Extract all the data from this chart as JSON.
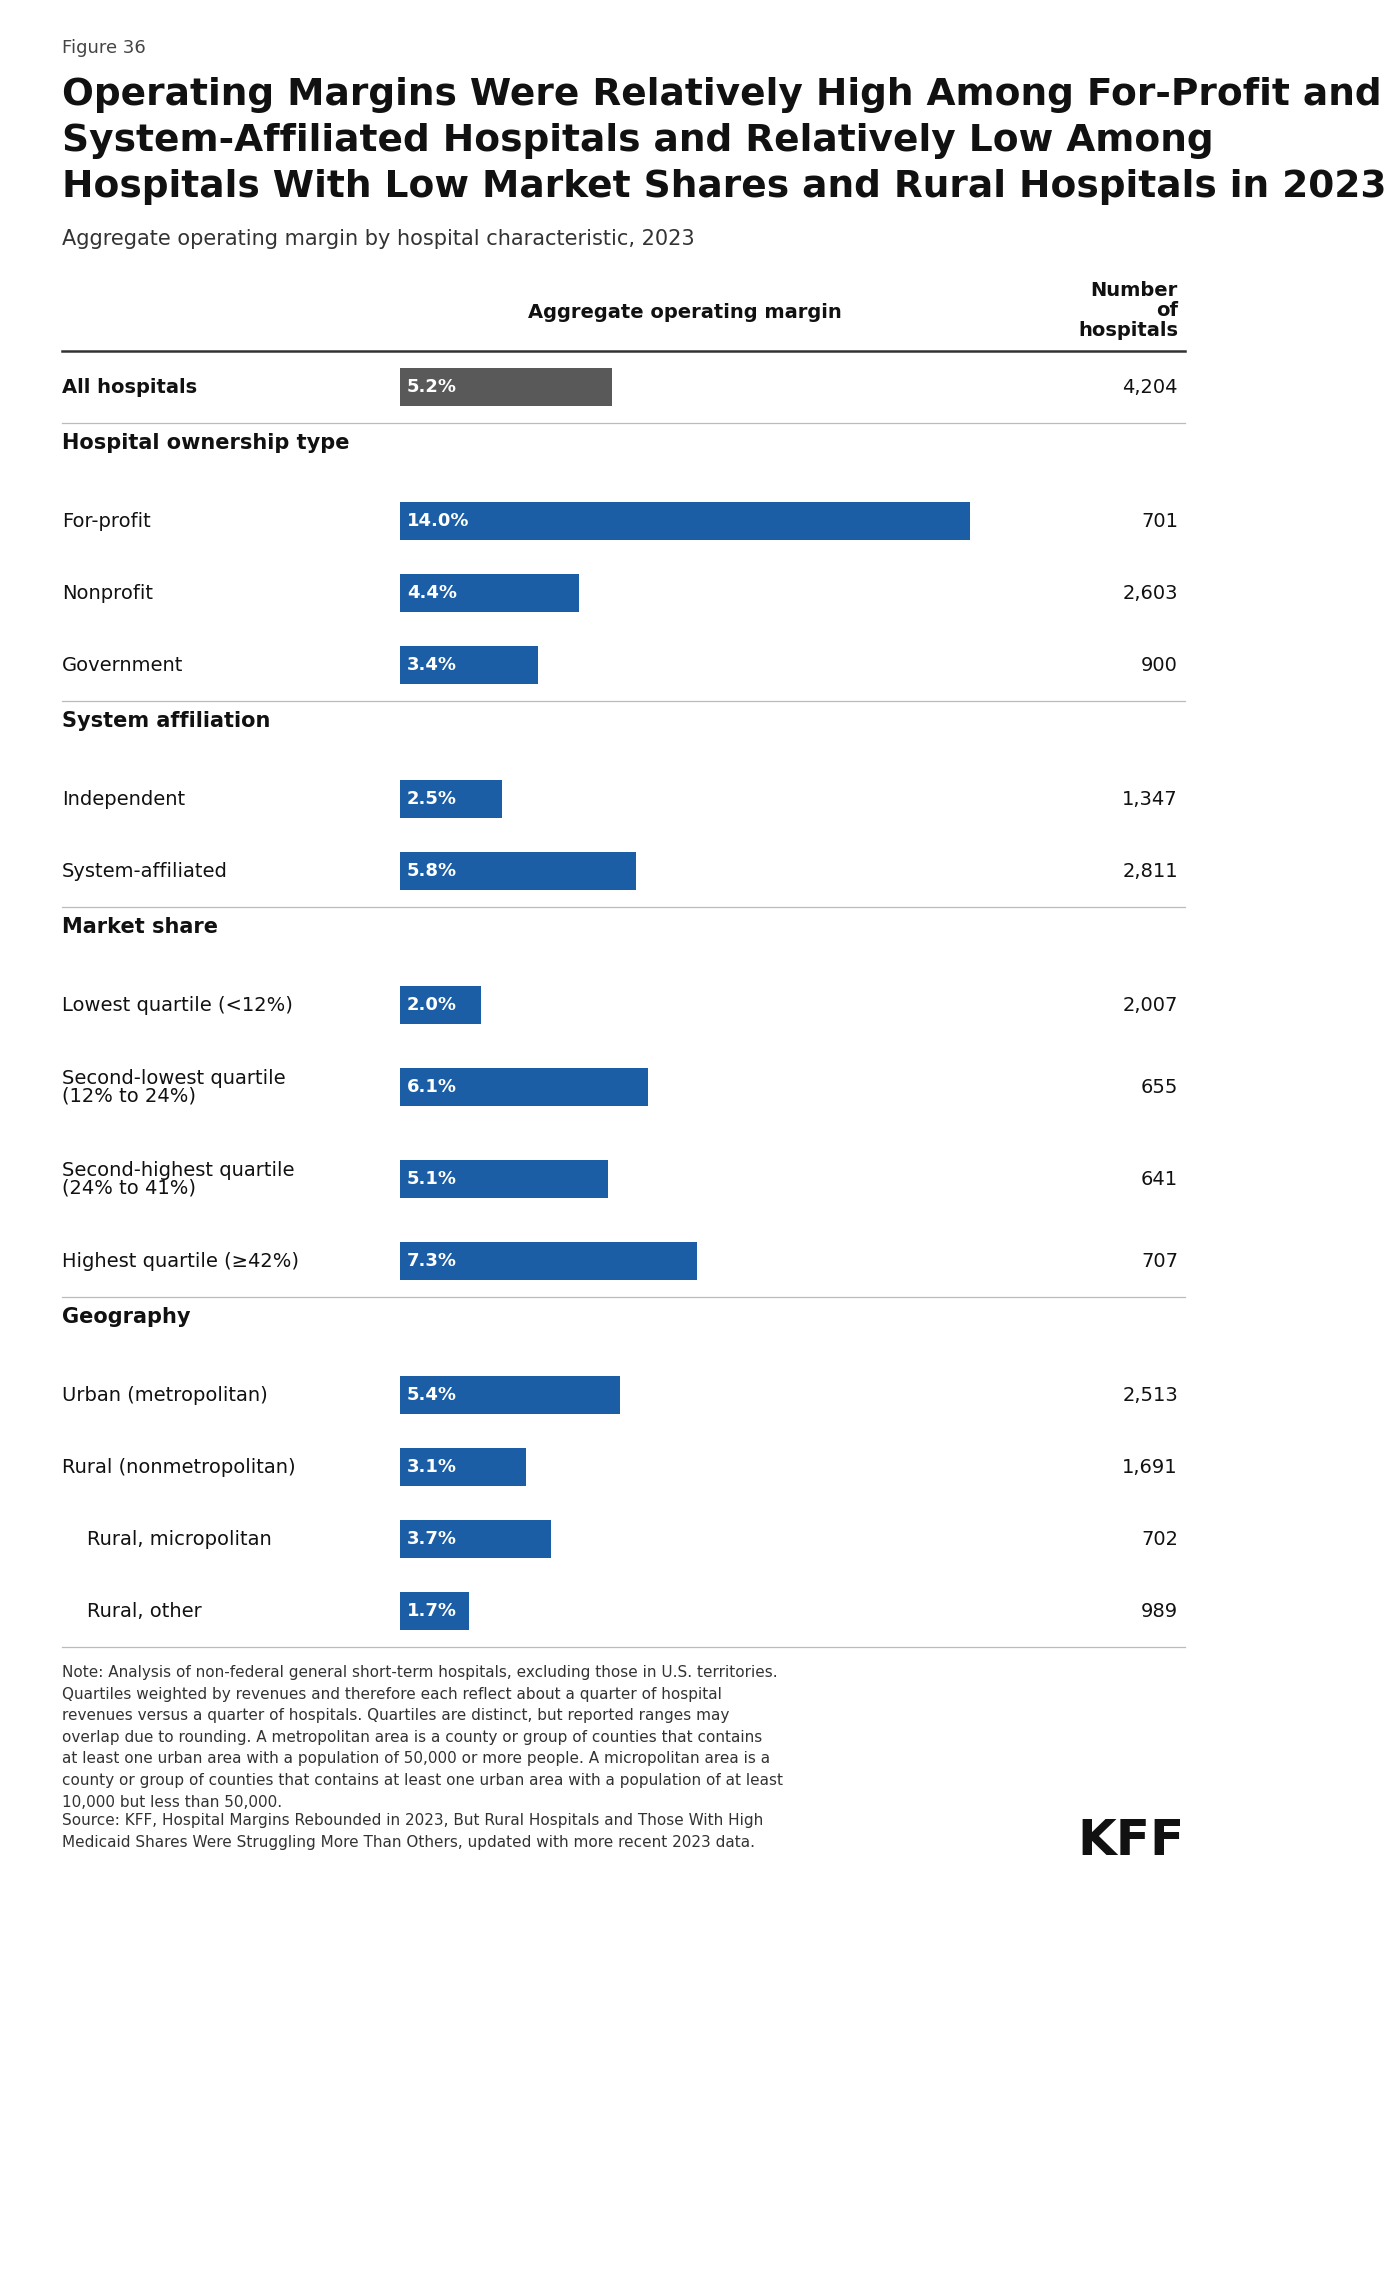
{
  "figure_label": "Figure 36",
  "title_line1": "Operating Margins Were Relatively High Among For-Profit and",
  "title_line2": "System-Affiliated Hospitals and Relatively Low Among",
  "title_line3": "Hospitals With Low Market Shares and Rural Hospitals in 2023",
  "subtitle": "Aggregate operating margin by hospital characteristic, 2023",
  "col_header_margin": "Aggregate operating margin",
  "col_header_number_line1": "Number",
  "col_header_number_line2": "of",
  "col_header_number_line3": "hospitals",
  "note_text": "Note: Analysis of non-federal general short-term hospitals, excluding those in U.S. territories.\nQuartiles weighted by revenues and therefore each reflect about a quarter of hospital\nrevenues versus a quarter of hospitals. Quartiles are distinct, but reported ranges may\noverlap due to rounding. A metropolitan area is a county or group of counties that contains\nat least one urban area with a population of 50,000 or more people. A micropolitan area is a\ncounty or group of counties that contains at least one urban area with a population of at least\n10,000 but less than 50,000.",
  "source_text": "Source: KFF, Hospital Margins Rebounded in 2023, But Rural Hospitals and Those With High\nMedicaid Shares Were Struggling More Than Others, updated with more recent 2023 data.",
  "rows": [
    {
      "label": "All hospitals",
      "value": 5.2,
      "label_text": "5.2%",
      "count": "4,204",
      "type": "data",
      "bold_label": true,
      "color": "#595959",
      "indent": 0
    },
    {
      "label": "Hospital ownership type",
      "value": null,
      "label_text": "",
      "count": "",
      "type": "section",
      "bold_label": true,
      "color": null,
      "indent": 0
    },
    {
      "label": "For-profit",
      "value": 14.0,
      "label_text": "14.0%",
      "count": "701",
      "type": "data",
      "bold_label": false,
      "color": "#1B5EA6",
      "indent": 0
    },
    {
      "label": "Nonprofit",
      "value": 4.4,
      "label_text": "4.4%",
      "count": "2,603",
      "type": "data",
      "bold_label": false,
      "color": "#1B5EA6",
      "indent": 0
    },
    {
      "label": "Government",
      "value": 3.4,
      "label_text": "3.4%",
      "count": "900",
      "type": "data",
      "bold_label": false,
      "color": "#1B5EA6",
      "indent": 0
    },
    {
      "label": "System affiliation",
      "value": null,
      "label_text": "",
      "count": "",
      "type": "section",
      "bold_label": true,
      "color": null,
      "indent": 0
    },
    {
      "label": "Independent",
      "value": 2.5,
      "label_text": "2.5%",
      "count": "1,347",
      "type": "data",
      "bold_label": false,
      "color": "#1B5EA6",
      "indent": 0
    },
    {
      "label": "System-affiliated",
      "value": 5.8,
      "label_text": "5.8%",
      "count": "2,811",
      "type": "data",
      "bold_label": false,
      "color": "#1B5EA6",
      "indent": 0
    },
    {
      "label": "Market share",
      "value": null,
      "label_text": "",
      "count": "",
      "type": "section",
      "bold_label": true,
      "color": null,
      "indent": 0
    },
    {
      "label": "Lowest quartile (<12%)",
      "value": 2.0,
      "label_text": "2.0%",
      "count": "2,007",
      "type": "data",
      "bold_label": false,
      "color": "#1B5EA6",
      "indent": 0
    },
    {
      "label": "Second-lowest quartile\n(12% to 24%)",
      "value": 6.1,
      "label_text": "6.1%",
      "count": "655",
      "type": "data2",
      "bold_label": false,
      "color": "#1B5EA6",
      "indent": 0
    },
    {
      "label": "Second-highest quartile\n(24% to 41%)",
      "value": 5.1,
      "label_text": "5.1%",
      "count": "641",
      "type": "data2",
      "bold_label": false,
      "color": "#1B5EA6",
      "indent": 0
    },
    {
      "label": "Highest quartile (≥42%)",
      "value": 7.3,
      "label_text": "7.3%",
      "count": "707",
      "type": "data",
      "bold_label": false,
      "color": "#1B5EA6",
      "indent": 0
    },
    {
      "label": "Geography",
      "value": null,
      "label_text": "",
      "count": "",
      "type": "section",
      "bold_label": true,
      "color": null,
      "indent": 0
    },
    {
      "label": "Urban (metropolitan)",
      "value": 5.4,
      "label_text": "5.4%",
      "count": "2,513",
      "type": "data",
      "bold_label": false,
      "color": "#1B5EA6",
      "indent": 0
    },
    {
      "label": "Rural (nonmetropolitan)",
      "value": 3.1,
      "label_text": "3.1%",
      "count": "1,691",
      "type": "data",
      "bold_label": false,
      "color": "#1B5EA6",
      "indent": 0
    },
    {
      "label": "Rural, micropolitan",
      "value": 3.7,
      "label_text": "3.7%",
      "count": "702",
      "type": "data",
      "bold_label": false,
      "color": "#1B5EA6",
      "indent": 25
    },
    {
      "label": "Rural, other",
      "value": 1.7,
      "label_text": "1.7%",
      "count": "989",
      "type": "data",
      "bold_label": false,
      "color": "#1B5EA6",
      "indent": 25
    }
  ],
  "bar_max_pct": 14.0,
  "background_color": "#ffffff",
  "kff_logo_text": "KFF"
}
